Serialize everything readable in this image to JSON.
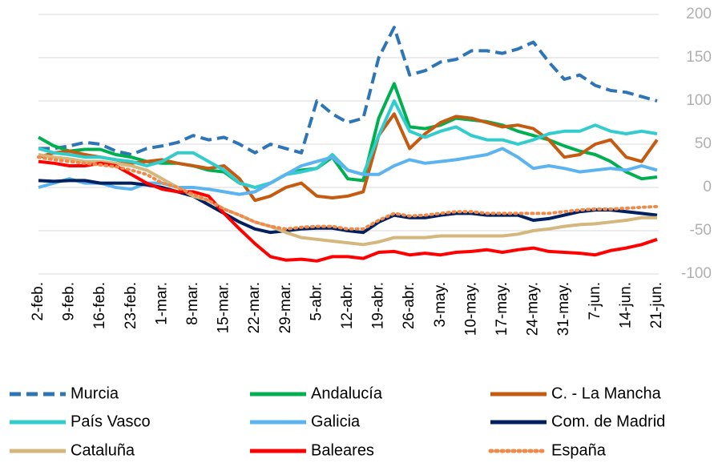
{
  "chart_data": {
    "type": "line",
    "categories": [
      "2-feb.",
      null,
      "9-feb.",
      null,
      "16-feb.",
      null,
      "23-feb.",
      null,
      "1-mar.",
      null,
      "8-mar.",
      null,
      "15-mar.",
      null,
      "22-mar.",
      null,
      "29-mar.",
      null,
      "5-abr.",
      null,
      "12-abr.",
      null,
      "19-abr.",
      null,
      "26-abr.",
      null,
      "3-may.",
      null,
      "10-may.",
      null,
      "17-may.",
      null,
      "24-may.",
      null,
      "31-may.",
      null,
      "7-jun.",
      null,
      "14-jun.",
      null,
      "21-jun."
    ],
    "ylim": [
      -100,
      200
    ],
    "yticks": [
      -100,
      -50,
      0,
      50,
      100,
      150,
      200
    ],
    "grid": true,
    "legend": "bottom",
    "series": [
      {
        "name": "Murcia",
        "color": "#2e75b6",
        "dash": "dashed",
        "values": [
          45,
          45,
          48,
          52,
          50,
          42,
          38,
          45,
          48,
          52,
          60,
          55,
          58,
          50,
          40,
          50,
          45,
          40,
          100,
          85,
          75,
          80,
          150,
          185,
          130,
          135,
          145,
          148,
          158,
          158,
          155,
          160,
          168,
          145,
          125,
          130,
          118,
          112,
          110,
          105,
          100
        ]
      },
      {
        "name": "Andalucía",
        "color": "#00b050",
        "values": [
          58,
          48,
          42,
          44,
          44,
          38,
          35,
          30,
          28,
          28,
          25,
          20,
          18,
          5,
          0,
          5,
          15,
          20,
          22,
          35,
          10,
          8,
          80,
          120,
          70,
          68,
          72,
          80,
          78,
          76,
          72,
          65,
          60,
          55,
          48,
          42,
          38,
          30,
          18,
          10,
          12
        ]
      },
      {
        "name": "C. - La Mancha",
        "color": "#c55a11",
        "values": [
          35,
          40,
          42,
          38,
          35,
          32,
          28,
          30,
          32,
          28,
          25,
          22,
          25,
          10,
          -15,
          -10,
          0,
          5,
          -10,
          -12,
          -10,
          -5,
          60,
          85,
          45,
          62,
          75,
          82,
          80,
          75,
          70,
          72,
          68,
          55,
          35,
          38,
          50,
          55,
          35,
          30,
          55
        ]
      },
      {
        "name": "País Vasco",
        "color": "#33cccc",
        "values": [
          45,
          40,
          38,
          35,
          35,
          32,
          30,
          25,
          30,
          40,
          40,
          30,
          20,
          5,
          0,
          5,
          15,
          18,
          22,
          38,
          20,
          15,
          60,
          100,
          65,
          58,
          65,
          70,
          60,
          55,
          55,
          50,
          55,
          62,
          65,
          65,
          72,
          65,
          62,
          65,
          62
        ]
      },
      {
        "name": "Galicia",
        "color": "#5bb4f0",
        "values": [
          0,
          5,
          10,
          5,
          5,
          0,
          -2,
          5,
          5,
          0,
          0,
          -2,
          -5,
          -8,
          -5,
          5,
          15,
          25,
          30,
          35,
          20,
          15,
          15,
          25,
          32,
          28,
          30,
          32,
          35,
          38,
          45,
          35,
          22,
          25,
          22,
          18,
          20,
          22,
          20,
          25,
          20
        ]
      },
      {
        "name": "Com. de Madrid",
        "color": "#002060",
        "values": [
          8,
          7,
          8,
          8,
          5,
          5,
          5,
          3,
          0,
          -5,
          -10,
          -20,
          -30,
          -40,
          -48,
          -52,
          -50,
          -48,
          -47,
          -47,
          -50,
          -52,
          -40,
          -32,
          -35,
          -35,
          -32,
          -30,
          -30,
          -32,
          -32,
          -32,
          -38,
          -36,
          -32,
          -28,
          -26,
          -26,
          -28,
          -30,
          -32
        ]
      },
      {
        "name": "Cataluña",
        "color": "#d4b77d",
        "values": [
          38,
          35,
          33,
          30,
          30,
          28,
          25,
          20,
          10,
          0,
          -10,
          -15,
          -25,
          -32,
          -40,
          -45,
          -52,
          -58,
          -60,
          -62,
          -64,
          -66,
          -63,
          -58,
          -58,
          -58,
          -56,
          -56,
          -56,
          -56,
          -56,
          -54,
          -50,
          -48,
          -45,
          -43,
          -42,
          -40,
          -38,
          -35,
          -35
        ]
      },
      {
        "name": "Baleares",
        "color": "#ff0000",
        "values": [
          30,
          28,
          25,
          25,
          28,
          25,
          15,
          5,
          -2,
          -5,
          -5,
          -10,
          -30,
          -48,
          -65,
          -80,
          -84,
          -83,
          -85,
          -80,
          -80,
          -82,
          -75,
          -74,
          -78,
          -76,
          -78,
          -75,
          -74,
          -72,
          -75,
          -72,
          -70,
          -74,
          -75,
          -76,
          -78,
          -73,
          -70,
          -66,
          -60
        ]
      },
      {
        "name": "España",
        "color": "#f08a4b",
        "dash": "dotted",
        "values": [
          35,
          32,
          30,
          28,
          26,
          24,
          20,
          15,
          5,
          0,
          -8,
          -15,
          -25,
          -32,
          -40,
          -45,
          -48,
          -46,
          -45,
          -45,
          -48,
          -48,
          -38,
          -30,
          -33,
          -32,
          -30,
          -28,
          -28,
          -30,
          -30,
          -30,
          -30,
          -30,
          -28,
          -26,
          -25,
          -25,
          -24,
          -23,
          -22
        ]
      }
    ]
  }
}
